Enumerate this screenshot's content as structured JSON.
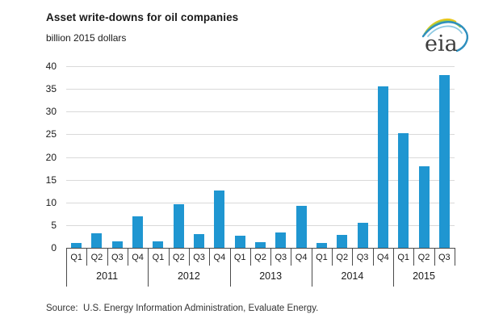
{
  "header": {
    "title": "Asset write-downs for oil companies",
    "subtitle": "billion 2015 dollars",
    "logo_text": "eia"
  },
  "source": "Source:  U.S. Energy Information Administration, Evaluate Energy.",
  "colors": {
    "bar": "#1f96d1",
    "gridline": "#d9d9d9",
    "axis": "#4a4a4a",
    "text": "#1a1a1a",
    "logo_text": "#3d3d3d",
    "logo_yellow": "#e8c71c",
    "logo_green": "#95ca4e",
    "logo_blue": "#2e8fbe",
    "logo_light_blue": "#8ec9e2"
  },
  "chart_data": {
    "type": "bar",
    "title": "Asset write-downs for oil companies",
    "ylabel": "billion 2015 dollars",
    "ylim": [
      0,
      40
    ],
    "ytick_interval": 5,
    "grid": true,
    "legend_position": "none",
    "categories": [
      "Q1",
      "Q2",
      "Q3",
      "Q4",
      "Q1",
      "Q2",
      "Q3",
      "Q4",
      "Q1",
      "Q2",
      "Q3",
      "Q4",
      "Q1",
      "Q2",
      "Q3",
      "Q4",
      "Q1",
      "Q2",
      "Q3"
    ],
    "year_groups": [
      {
        "label": "2011",
        "count": 4
      },
      {
        "label": "2012",
        "count": 4
      },
      {
        "label": "2013",
        "count": 4
      },
      {
        "label": "2014",
        "count": 4
      },
      {
        "label": "2015",
        "count": 3
      }
    ],
    "values": [
      1.0,
      3.2,
      1.4,
      6.9,
      1.5,
      9.6,
      3.0,
      12.7,
      2.6,
      1.3,
      3.4,
      9.2,
      1.1,
      2.9,
      5.5,
      35.6,
      25.2,
      18.0,
      38.0
    ]
  }
}
